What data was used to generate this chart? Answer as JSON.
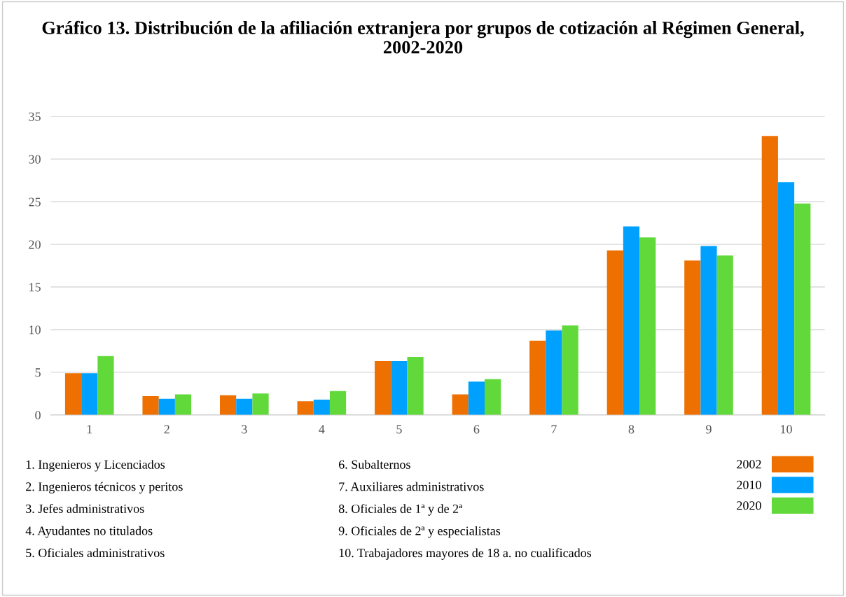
{
  "chart_data": {
    "type": "bar",
    "title": "Gráfico 13. Distribución de la afiliación extranjera por grupos de cotización al Régimen General, 2002-2020",
    "categories": [
      "1",
      "2",
      "3",
      "4",
      "5",
      "6",
      "7",
      "8",
      "9",
      "10"
    ],
    "series": [
      {
        "name": "2002",
        "color": "#ee7000",
        "values": [
          4.9,
          2.2,
          2.3,
          1.6,
          6.3,
          2.4,
          8.7,
          19.3,
          18.1,
          32.7
        ]
      },
      {
        "name": "2010",
        "color": "#00a0ff",
        "values": [
          4.9,
          1.9,
          1.9,
          1.8,
          6.3,
          3.9,
          9.9,
          22.1,
          19.8,
          27.3
        ]
      },
      {
        "name": "2020",
        "color": "#62d93a",
        "values": [
          6.9,
          2.4,
          2.5,
          2.8,
          6.8,
          4.2,
          10.5,
          20.8,
          18.7,
          24.8
        ]
      }
    ],
    "ylim": [
      0,
      35
    ],
    "yticks": [
      0,
      5,
      10,
      15,
      20,
      25,
      30,
      35
    ],
    "grid": "y",
    "legend": "bottom right",
    "annotations": [
      "1. Ingenieros y Licenciados",
      "2. Ingenieros técnicos y peritos",
      "3. Jefes administrativos",
      "4. Ayudantes no titulados",
      "5. Oficiales administrativos",
      "6. Subalternos",
      "7. Auxiliares administrativos",
      "8. Oficiales de 1ª y de 2ª",
      "9. Oficiales de 2ª y especialistas",
      "10. Trabajadores mayores de 18 a. no cualificados"
    ]
  }
}
